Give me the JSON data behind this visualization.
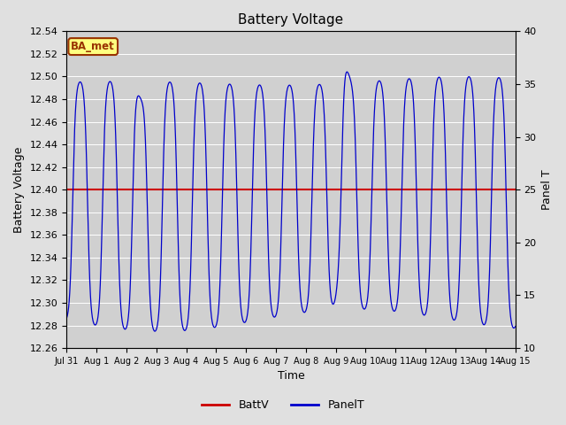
{
  "title": "Battery Voltage",
  "ylabel_left": "Battery Voltage",
  "ylabel_right": "Panel T",
  "xlabel": "Time",
  "ylim_left": [
    12.26,
    12.54
  ],
  "ylim_right": [
    10,
    40
  ],
  "battv_value": 12.4,
  "background_color": "#e0e0e0",
  "plot_bg_color": "#d0d0d0",
  "line_color_battv": "#cc0000",
  "line_color_panelt": "#0000cc",
  "ba_met_label": "BA_met",
  "ba_met_bg": "#ffff80",
  "ba_met_border": "#993300",
  "total_days": 15,
  "tick_labels": [
    "Jul 31",
    "Aug 1",
    "Aug 2",
    "Aug 3",
    "Aug 4",
    "Aug 5",
    "Aug 6",
    "Aug 7",
    "Aug 8",
    "Aug 9",
    "Aug 10",
    "Aug 11",
    "Aug 12",
    "Aug 13",
    "Aug 14",
    "Aug 15"
  ],
  "legend_labels": [
    "BattV",
    "PanelT"
  ],
  "grid_color": "#f0f0f0",
  "figsize": [
    6.4,
    4.8
  ],
  "dpi": 100
}
